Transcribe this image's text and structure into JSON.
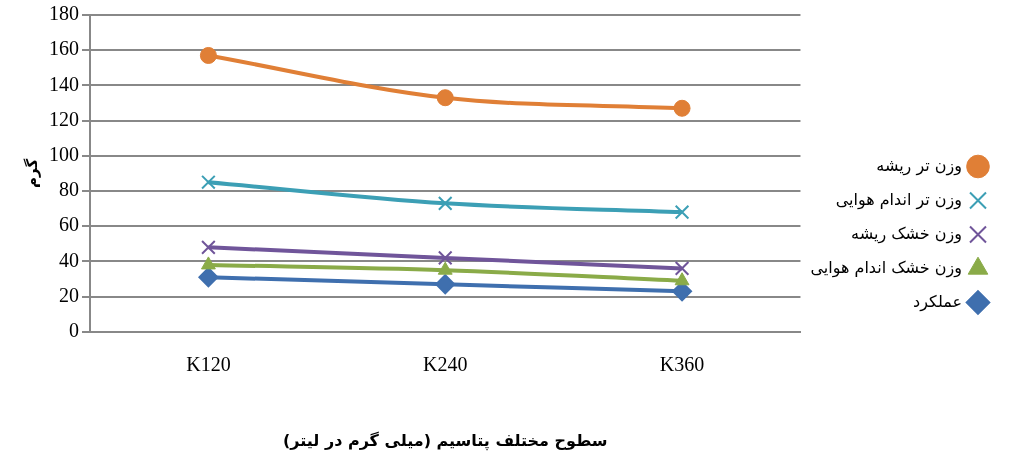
{
  "chart_data": {
    "type": "line",
    "xlabel": "سطوح مختلف پتاسیم (میلی گرم در لیتر)",
    "ylabel": "گرم",
    "categories": [
      "K120",
      "K240",
      "K360"
    ],
    "series": [
      {
        "name": "وزن تر ریشه",
        "color": "#e07f36",
        "marker": "circle",
        "values": [
          157,
          133,
          127
        ]
      },
      {
        "name": "وزن تر اندام هوایی",
        "color": "#3c9fb5",
        "marker": "cross",
        "values": [
          85,
          73,
          68
        ]
      },
      {
        "name": "وزن خشک ریشه",
        "color": "#70559a",
        "marker": "cross",
        "values": [
          48,
          42,
          36
        ]
      },
      {
        "name": "وزن خشک اندام هوایی",
        "color": "#8aab48",
        "marker": "triangle",
        "values": [
          38,
          35,
          29
        ]
      },
      {
        "name": "عملکرد",
        "color": "#3f6fae",
        "marker": "diamond",
        "values": [
          31,
          27,
          23
        ]
      }
    ],
    "ylim": [
      0,
      180
    ],
    "yticks": [
      0,
      20,
      40,
      60,
      80,
      100,
      120,
      140,
      160,
      180
    ],
    "grid": "y",
    "legend": "right",
    "line_style": "solid"
  }
}
